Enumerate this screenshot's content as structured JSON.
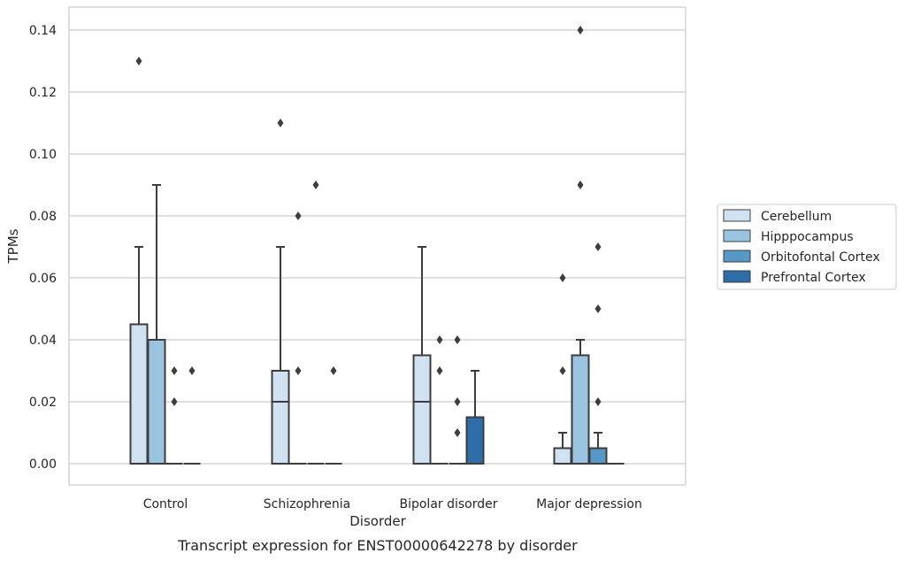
{
  "chart_data": {
    "type": "box",
    "title": "",
    "caption": "Transcript expression for ENST00000642278 by disorder",
    "xlabel": "Disorder",
    "ylabel": "TPMs",
    "ylim": [
      -0.007,
      0.147
    ],
    "yticks": [
      0.0,
      0.02,
      0.04,
      0.06,
      0.08,
      0.1,
      0.12,
      0.14
    ],
    "ytick_labels": [
      "0.00",
      "0.02",
      "0.04",
      "0.06",
      "0.08",
      "0.10",
      "0.12",
      "0.14"
    ],
    "grid": "horizontal",
    "legend_position": "right",
    "categories": [
      "Control",
      "Schizophrenia",
      "Bipolar disorder",
      "Major depression"
    ],
    "series": [
      {
        "name": "Cerebellum",
        "color": "#d0e1f2",
        "boxes": [
          {
            "q1": 0.0,
            "median": 0.0,
            "q3": 0.045,
            "whisker_low": 0.0,
            "whisker_high": 0.07,
            "outliers": [
              0.13
            ]
          },
          {
            "q1": 0.0,
            "median": 0.02,
            "q3": 0.03,
            "whisker_low": 0.0,
            "whisker_high": 0.07,
            "outliers": [
              0.11
            ]
          },
          {
            "q1": 0.0,
            "median": 0.02,
            "q3": 0.035,
            "whisker_low": 0.0,
            "whisker_high": 0.07,
            "outliers": []
          },
          {
            "q1": 0.0,
            "median": 0.0,
            "q3": 0.005,
            "whisker_low": 0.0,
            "whisker_high": 0.01,
            "outliers": [
              0.03,
              0.06
            ]
          }
        ]
      },
      {
        "name": "Hipppocampus",
        "color": "#9ac3df",
        "boxes": [
          {
            "q1": 0.0,
            "median": 0.0,
            "q3": 0.04,
            "whisker_low": 0.0,
            "whisker_high": 0.09,
            "outliers": []
          },
          {
            "q1": 0.0,
            "median": 0.0,
            "q3": 0.0,
            "whisker_low": 0.0,
            "whisker_high": 0.0,
            "outliers": [
              0.03,
              0.08
            ]
          },
          {
            "q1": 0.0,
            "median": 0.0,
            "q3": 0.0,
            "whisker_low": 0.0,
            "whisker_high": 0.0,
            "outliers": [
              0.03,
              0.04
            ]
          },
          {
            "q1": 0.0,
            "median": 0.0,
            "q3": 0.035,
            "whisker_low": 0.0,
            "whisker_high": 0.04,
            "outliers": [
              0.09,
              0.14
            ]
          }
        ]
      },
      {
        "name": "Orbitofontal Cortex",
        "color": "#5698c6",
        "boxes": [
          {
            "q1": 0.0,
            "median": 0.0,
            "q3": 0.0,
            "whisker_low": 0.0,
            "whisker_high": 0.0,
            "outliers": [
              0.02,
              0.03
            ]
          },
          {
            "q1": 0.0,
            "median": 0.0,
            "q3": 0.0,
            "whisker_low": 0.0,
            "whisker_high": 0.0,
            "outliers": [
              0.09
            ]
          },
          {
            "q1": 0.0,
            "median": 0.0,
            "q3": 0.0,
            "whisker_low": 0.0,
            "whisker_high": 0.0,
            "outliers": [
              0.01,
              0.02,
              0.04
            ]
          },
          {
            "q1": 0.0,
            "median": 0.0,
            "q3": 0.005,
            "whisker_low": 0.0,
            "whisker_high": 0.01,
            "outliers": [
              0.02,
              0.05,
              0.07
            ]
          }
        ]
      },
      {
        "name": "Prefrontal Cortex",
        "color": "#2e6ea8",
        "boxes": [
          {
            "q1": 0.0,
            "median": 0.0,
            "q3": 0.0,
            "whisker_low": 0.0,
            "whisker_high": 0.0,
            "outliers": [
              0.03
            ]
          },
          {
            "q1": 0.0,
            "median": 0.0,
            "q3": 0.0,
            "whisker_low": 0.0,
            "whisker_high": 0.0,
            "outliers": [
              0.03
            ]
          },
          {
            "q1": 0.0,
            "median": 0.0,
            "q3": 0.015,
            "whisker_low": 0.0,
            "whisker_high": 0.03,
            "outliers": []
          },
          {
            "q1": 0.0,
            "median": 0.0,
            "q3": 0.0,
            "whisker_low": 0.0,
            "whisker_high": 0.0,
            "outliers": []
          }
        ]
      }
    ]
  }
}
